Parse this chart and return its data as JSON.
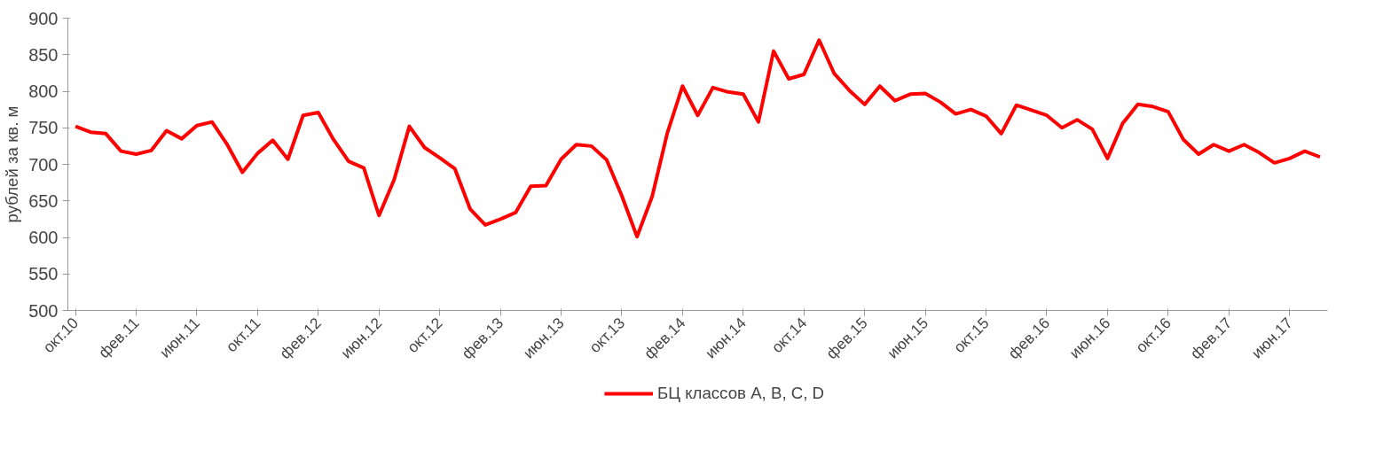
{
  "chart_data": {
    "type": "line",
    "ylabel": "рублей за кв. м",
    "categories": [
      "окт.10",
      null,
      null,
      null,
      "фев.11",
      null,
      null,
      null,
      "июн.11",
      null,
      null,
      null,
      "окт.11",
      null,
      null,
      null,
      "фев.12",
      null,
      null,
      null,
      "июн.12",
      null,
      null,
      null,
      "окт.12",
      null,
      null,
      null,
      "фев.13",
      null,
      null,
      null,
      "июн.13",
      null,
      null,
      null,
      "окт.13",
      null,
      null,
      null,
      "фев.14",
      null,
      null,
      null,
      "июн.14",
      null,
      null,
      null,
      "окт.14",
      null,
      null,
      null,
      "фев.15",
      null,
      null,
      null,
      "июн.15",
      null,
      null,
      null,
      "окт.15",
      null,
      null,
      null,
      "фев.16",
      null,
      null,
      null,
      "июн.16",
      null,
      null,
      null,
      "окт.16",
      null,
      null,
      null,
      "фев.17",
      null,
      null,
      null,
      "июн.17",
      null,
      null
    ],
    "series": [
      {
        "name": "БЦ классов A, B, C, D",
        "color": "#ff0000",
        "values": [
          752,
          744,
          742,
          718,
          714,
          719,
          746,
          735,
          753,
          758,
          727,
          689,
          715,
          733,
          707,
          767,
          771,
          734,
          704,
          695,
          630,
          679,
          752,
          723,
          709,
          694,
          639,
          617,
          625,
          634,
          670,
          671,
          707,
          727,
          725,
          706,
          657,
          601,
          656,
          743,
          807,
          767,
          805,
          799,
          796,
          758,
          855,
          817,
          823,
          870,
          824,
          801,
          782,
          807,
          787,
          796,
          797,
          785,
          769,
          775,
          766,
          742,
          781,
          774,
          767,
          750,
          761,
          748,
          708,
          756,
          782,
          779,
          772,
          734,
          714,
          727,
          718,
          727,
          716,
          702,
          708,
          718,
          710
        ]
      }
    ],
    "ylim": [
      500,
      900
    ],
    "yticks": [
      500,
      550,
      600,
      650,
      700,
      750,
      800,
      850,
      900
    ],
    "grid": false,
    "legend": "bottom",
    "marker": "none",
    "line_style": "solid"
  }
}
